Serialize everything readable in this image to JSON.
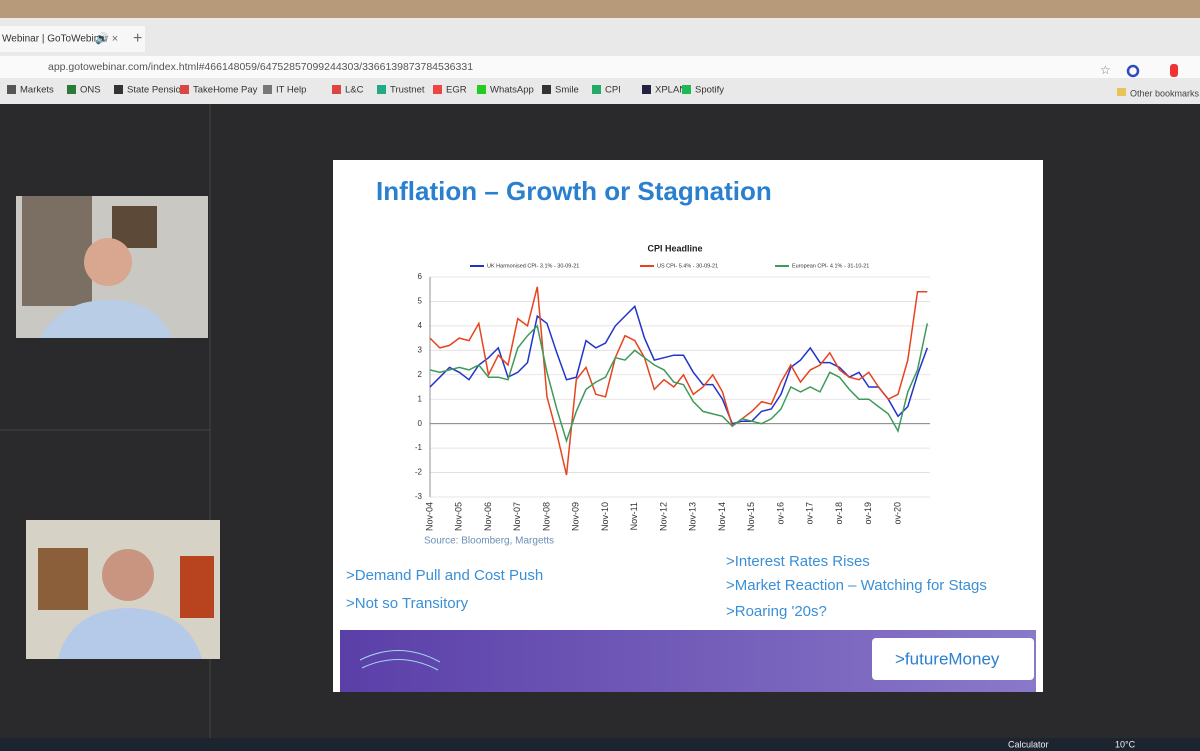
{
  "browser": {
    "tab_title": "Webinar | GoToWebinar",
    "url": "app.gotowebinar.com/index.html#466148059/64752857099244303/3366139873784536331",
    "bookmarks": [
      "Markets",
      "ONS",
      "State Pension",
      "TakeHome Pay",
      "IT Help",
      "L&C",
      "Trustnet",
      "EGR",
      "WhatsApp",
      "Smile",
      "CPI",
      "XPLAN",
      "Spotify"
    ],
    "other_bookmarks": "Other bookmarks"
  },
  "slide": {
    "title": "Inflation – Growth or Stagnation",
    "chart": {
      "type": "line",
      "title": "CPI Headline",
      "categories": [
        "Nov-04",
        null,
        null,
        "Nov-05",
        null,
        null,
        "Nov-06",
        null,
        null,
        "Nov-07",
        null,
        null,
        "Nov-08",
        null,
        null,
        "Nov-09",
        null,
        null,
        "Nov-10",
        null,
        null,
        "Nov-11",
        null,
        null,
        "Nov-12",
        null,
        null,
        "Nov-13",
        null,
        null,
        "Nov-14",
        null,
        null,
        "Nov-15",
        null,
        null,
        "ov-16",
        null,
        null,
        "ov-17",
        null,
        null,
        "ov-18",
        null,
        null,
        "ov-19",
        null,
        null,
        "ov-20",
        null,
        null,
        null
      ],
      "series": [
        {
          "name": "UK Harmonised CPI- 3.1% - 30-09-21",
          "color": "#2233cc",
          "values": [
            1.5,
            1.9,
            2.3,
            2.1,
            1.8,
            2.4,
            2.7,
            3.1,
            1.9,
            2.1,
            2.5,
            4.4,
            4.1,
            2.9,
            1.8,
            1.9,
            3.4,
            3.1,
            3.3,
            4.0,
            4.4,
            4.8,
            3.5,
            2.6,
            2.7,
            2.8,
            2.8,
            2.1,
            1.6,
            1.6,
            1.0,
            0.0,
            0.1,
            0.1,
            0.5,
            0.6,
            1.2,
            2.3,
            2.6,
            3.1,
            2.5,
            2.5,
            2.3,
            1.9,
            2.1,
            1.5,
            1.5,
            1.0,
            0.3,
            0.7,
            2.0,
            3.1
          ]
        },
        {
          "name": "US CPI- 5.4% - 30-09-21",
          "color": "#e8431f",
          "values": [
            3.5,
            3.1,
            3.2,
            3.5,
            3.4,
            4.1,
            2.0,
            2.8,
            2.4,
            4.3,
            4.0,
            5.6,
            1.1,
            -0.4,
            -2.1,
            1.8,
            2.3,
            1.2,
            1.1,
            2.7,
            3.6,
            3.4,
            2.7,
            1.4,
            1.8,
            1.5,
            2.0,
            1.2,
            1.5,
            2.0,
            1.3,
            -0.1,
            0.2,
            0.5,
            0.9,
            0.8,
            1.7,
            2.4,
            1.7,
            2.2,
            2.4,
            2.9,
            2.2,
            1.9,
            1.8,
            2.1,
            1.5,
            1.0,
            1.2,
            2.6,
            5.4,
            5.4
          ]
        },
        {
          "name": "European CPI- 4.1% - 31-10-21",
          "color": "#3e9a5a",
          "values": [
            2.2,
            2.1,
            2.2,
            2.3,
            2.2,
            2.4,
            1.9,
            1.9,
            1.8,
            3.1,
            3.6,
            4.0,
            2.1,
            0.6,
            -0.7,
            0.5,
            1.4,
            1.7,
            1.9,
            2.7,
            2.6,
            3.0,
            2.7,
            2.4,
            2.2,
            1.7,
            1.6,
            0.9,
            0.5,
            0.4,
            0.3,
            -0.1,
            0.2,
            0.1,
            0.0,
            0.2,
            0.6,
            1.5,
            1.3,
            1.5,
            1.3,
            2.1,
            1.9,
            1.4,
            1.0,
            1.0,
            0.7,
            0.4,
            -0.3,
            1.3,
            2.2,
            4.1
          ]
        }
      ],
      "ylim": [
        -3,
        6
      ],
      "yticks": [
        -3,
        -2,
        -1,
        0,
        1,
        2,
        3,
        4,
        5,
        6
      ],
      "grid": true
    },
    "source": "Source: Bloomberg, Margetts",
    "bullets_left": [
      ">Demand Pull and Cost Push",
      ">Not so Transitory"
    ],
    "bullets_right": [
      ">Interest Rates Rises",
      ">Market Reaction – Watching for Stags",
      ">Roaring '20s?"
    ],
    "logo": ">futureMoney"
  },
  "taskbar": {
    "app": "Calculator",
    "temperature": "10°C"
  }
}
